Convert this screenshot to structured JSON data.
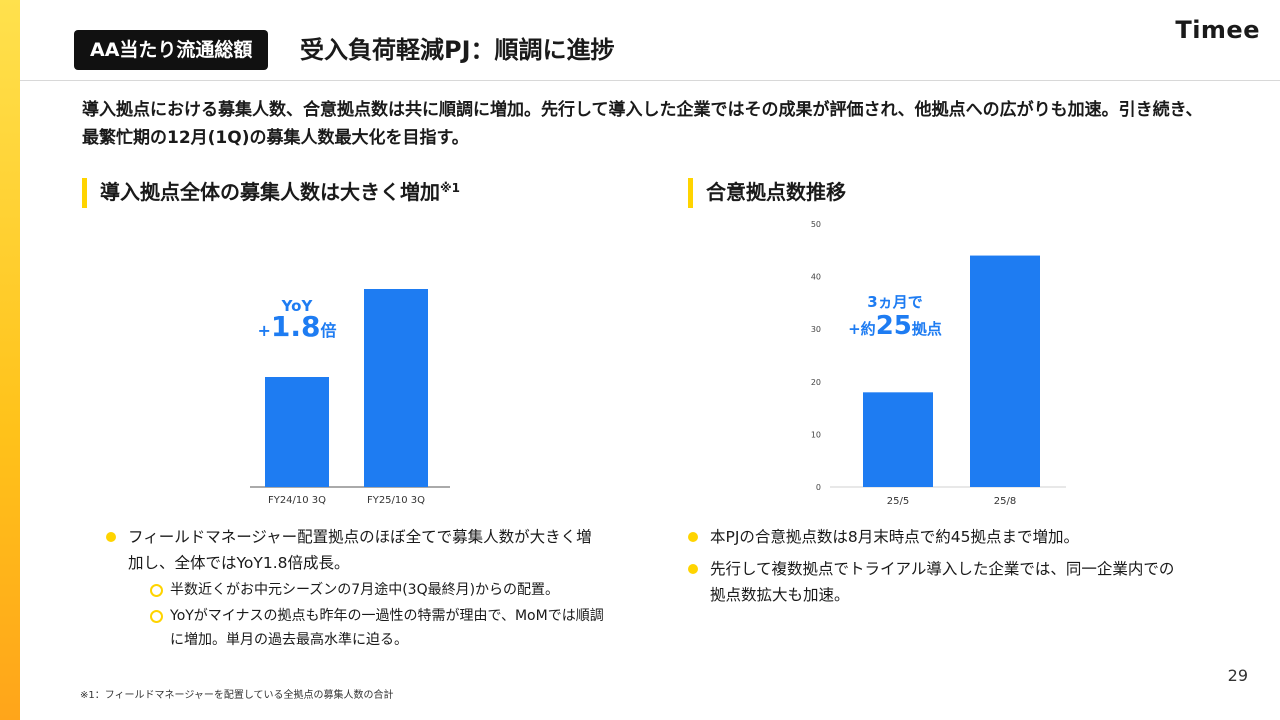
{
  "header": {
    "tag": "AA当たり流通総額",
    "title": "受入負荷軽減PJ：順調に進捗",
    "logo": "Timee"
  },
  "lead": "導入拠点における募集人数、合意拠点数は共に順調に増加。先行して導入した企業ではその成果が評価され、他拠点への広がりも加速。引き続き、最繁忙期の12月(1Q)の募集人数最大化を目指す。",
  "left": {
    "heading": "導入拠点全体の募集人数は大きく増加",
    "heading_sup": "※1",
    "annotation": {
      "line1": "YoY",
      "prefix": "+",
      "number": "1.8",
      "suffix": "倍"
    },
    "bullets": [
      {
        "text": "フィールドマネージャー配置拠点のほぼ全てで募集人数が大きく増加し、全体ではYoY1.8倍成長。",
        "subs": [
          "半数近くがお中元シーズンの7月途中(3Q最終月)からの配置。",
          "YoYがマイナスの拠点も昨年の一過性の特需が理由で、MoMでは順調に増加。単月の過去最高水準に迫る。"
        ]
      }
    ]
  },
  "right": {
    "heading": "合意拠点数推移",
    "annotation": {
      "line1": "3ヵ月で",
      "prefix": "+約",
      "number": "25",
      "suffix": "拠点"
    },
    "bullets": [
      "本PJの合意拠点数は8月末時点で約45拠点まで増加。",
      "先行して複数拠点でトライアル導入した企業では、同一企業内での拠点数拡大も加速。"
    ]
  },
  "footnote": "※1：フィールドマネージャーを配置している全拠点の募集人数の合計",
  "page_number": "29",
  "colors": {
    "bar": "#1E7CF2",
    "accent": "#FFD400",
    "annotation": "#1E7CF2"
  },
  "chart_data": [
    {
      "type": "bar",
      "categories": [
        "FY24/10 3Q",
        "FY25/10 3Q"
      ],
      "values": [
        1.0,
        1.8
      ],
      "ylim": [
        0,
        2.0
      ],
      "title": "",
      "xlabel": "",
      "ylabel": "",
      "grid": false,
      "y_axis_shown": false
    },
    {
      "type": "bar",
      "categories": [
        "25/5",
        "25/8"
      ],
      "values": [
        18,
        44
      ],
      "ylim": [
        0,
        50
      ],
      "yticks": [
        0,
        10,
        20,
        30,
        40,
        50
      ],
      "title": "",
      "xlabel": "",
      "ylabel": "",
      "grid": false,
      "y_axis_shown": true
    }
  ]
}
